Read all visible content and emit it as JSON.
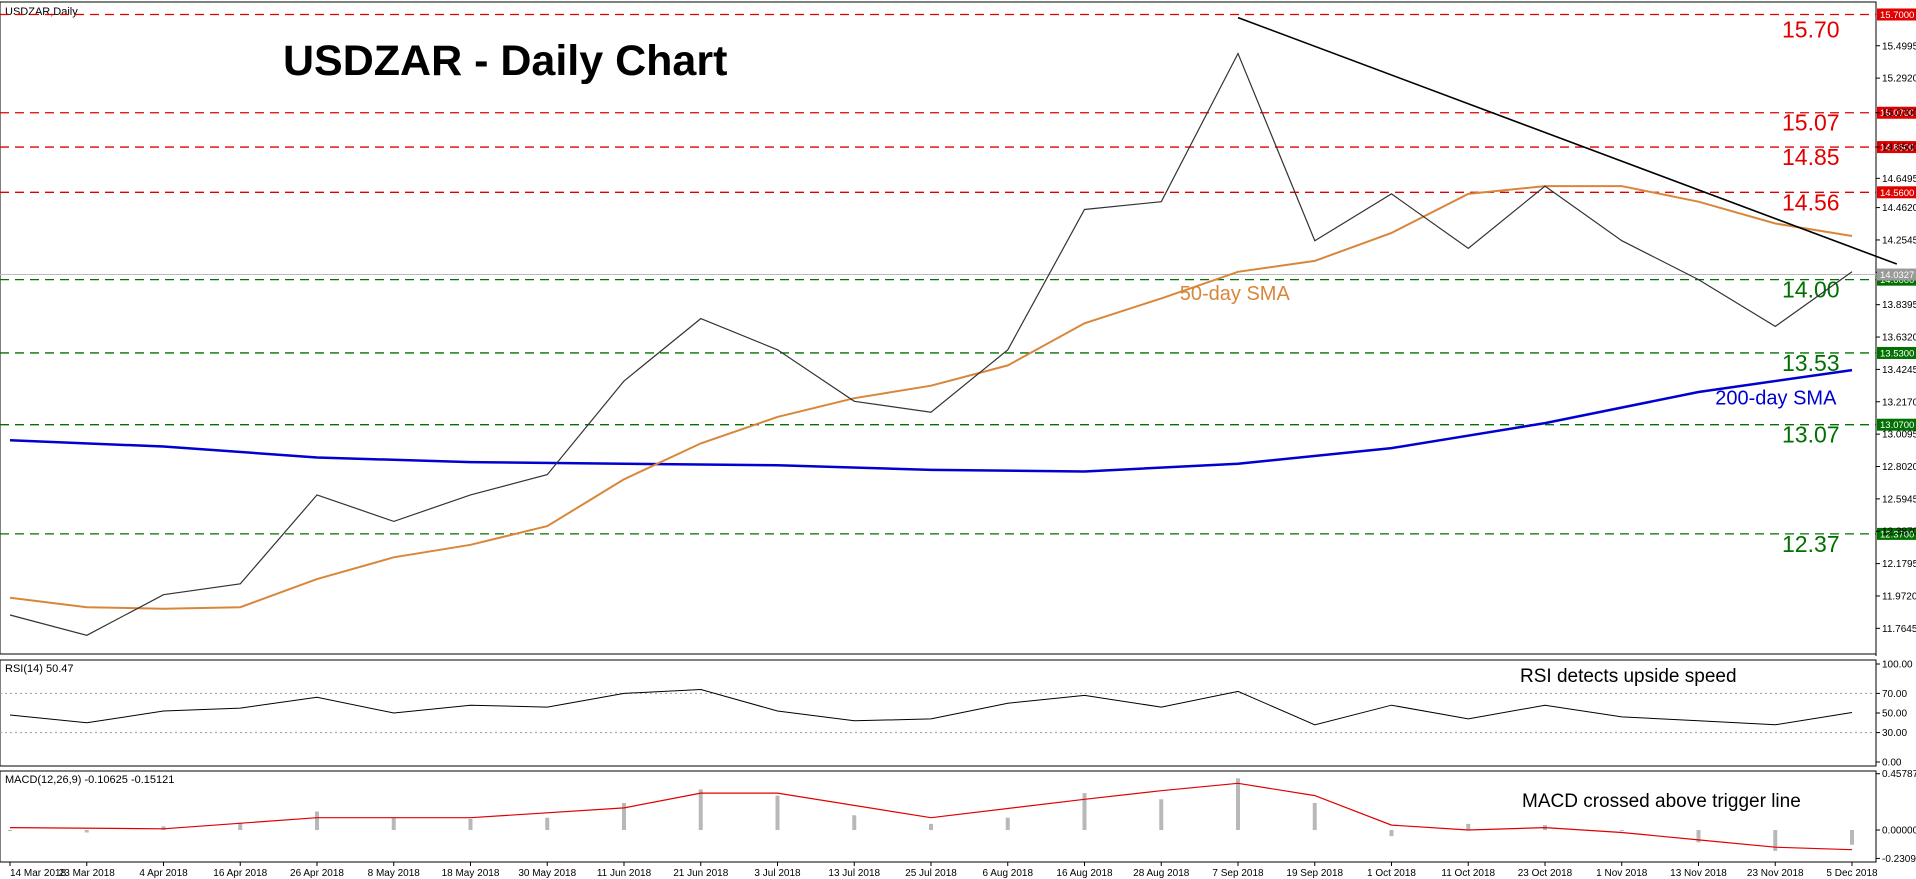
{
  "chart_data": {
    "type": "candlestick",
    "symbol_label": "USDZAR,Daily",
    "title": "USDZAR - Daily Chart",
    "price_axis": {
      "range": [
        11.6,
        15.78
      ],
      "ticks": [
        "15.4995",
        "15.2920",
        "15.0700",
        "14.8500",
        "14.6495",
        "14.4620",
        "14.2545",
        "14.0470",
        "13.8395",
        "13.6320",
        "13.4245",
        "13.2170",
        "13.0095",
        "12.8020",
        "12.5945",
        "12.3870",
        "12.1795",
        "11.9720",
        "11.7645"
      ]
    },
    "date_labels": [
      "14 Mar 2018",
      "23 Mar 2018",
      "4 Apr 2018",
      "16 Apr 2018",
      "26 Apr 2018",
      "8 May 2018",
      "18 May 2018",
      "30 May 2018",
      "11 Jun 2018",
      "21 Jun 2018",
      "3 Jul 2018",
      "13 Jul 2018",
      "25 Jul 2018",
      "6 Aug 2018",
      "16 Aug 2018",
      "28 Aug 2018",
      "7 Sep 2018",
      "19 Sep 2018",
      "1 Oct 2018",
      "11 Oct 2018",
      "23 Oct 2018",
      "1 Nov 2018",
      "13 Nov 2018",
      "23 Nov 2018",
      "5 Dec 2018"
    ],
    "levels": [
      {
        "value": 15.7,
        "label": "15.70",
        "tag": "15.7000",
        "kind": "resistance"
      },
      {
        "value": 15.07,
        "label": "15.07",
        "tag": "15.0700",
        "kind": "resistance"
      },
      {
        "value": 14.85,
        "label": "14.85",
        "tag": "14.8500",
        "kind": "resistance"
      },
      {
        "value": 14.56,
        "label": "14.56",
        "tag": "14.5600",
        "kind": "resistance"
      },
      {
        "value": 14.0,
        "label": "14.00",
        "tag": "14.0000",
        "kind": "support"
      },
      {
        "value": 13.53,
        "label": "13.53",
        "tag": "13.5300",
        "kind": "support"
      },
      {
        "value": 13.07,
        "label": "13.07",
        "tag": "13.0700",
        "kind": "support"
      },
      {
        "value": 12.37,
        "label": "12.37",
        "tag": "12.3700",
        "kind": "support"
      }
    ],
    "current_price_tag": "14.0327",
    "sma50_label": "50-day SMA",
    "sma200_label": "200-day SMA",
    "trendline": {
      "from": [
        "7 Sep 2018",
        15.68
      ],
      "to": [
        "12 Dec 2018",
        14.1
      ]
    },
    "price_path": [
      [
        "14 Mar 2018",
        11.85
      ],
      [
        "23 Mar 2018",
        11.72
      ],
      [
        "4 Apr 2018",
        11.98
      ],
      [
        "16 Apr 2018",
        12.05
      ],
      [
        "26 Apr 2018",
        12.62
      ],
      [
        "8 May 2018",
        12.45
      ],
      [
        "18 May 2018",
        12.62
      ],
      [
        "30 May 2018",
        12.75
      ],
      [
        "11 Jun 2018",
        13.35
      ],
      [
        "21 Jun 2018",
        13.75
      ],
      [
        "3 Jul 2018",
        13.55
      ],
      [
        "13 Jul 2018",
        13.22
      ],
      [
        "25 Jul 2018",
        13.15
      ],
      [
        "6 Aug 2018",
        13.55
      ],
      [
        "16 Aug 2018",
        14.45
      ],
      [
        "28 Aug 2018",
        14.5
      ],
      [
        "7 Sep 2018",
        15.45
      ],
      [
        "19 Sep 2018",
        14.25
      ],
      [
        "1 Oct 2018",
        14.55
      ],
      [
        "11 Oct 2018",
        14.2
      ],
      [
        "23 Oct 2018",
        14.6
      ],
      [
        "1 Nov 2018",
        14.25
      ],
      [
        "13 Nov 2018",
        14.0
      ],
      [
        "23 Nov 2018",
        13.7
      ],
      [
        "5 Dec 2018",
        14.05
      ]
    ],
    "sma50_path": [
      [
        "14 Mar 2018",
        11.96
      ],
      [
        "23 Mar 2018",
        11.9
      ],
      [
        "4 Apr 2018",
        11.89
      ],
      [
        "16 Apr 2018",
        11.9
      ],
      [
        "26 Apr 2018",
        12.08
      ],
      [
        "8 May 2018",
        12.22
      ],
      [
        "18 May 2018",
        12.3
      ],
      [
        "30 May 2018",
        12.42
      ],
      [
        "11 Jun 2018",
        12.72
      ],
      [
        "21 Jun 2018",
        12.95
      ],
      [
        "3 Jul 2018",
        13.12
      ],
      [
        "13 Jul 2018",
        13.24
      ],
      [
        "25 Jul 2018",
        13.32
      ],
      [
        "6 Aug 2018",
        13.45
      ],
      [
        "16 Aug 2018",
        13.72
      ],
      [
        "28 Aug 2018",
        13.88
      ],
      [
        "7 Sep 2018",
        14.05
      ],
      [
        "19 Sep 2018",
        14.12
      ],
      [
        "1 Oct 2018",
        14.3
      ],
      [
        "11 Oct 2018",
        14.55
      ],
      [
        "23 Oct 2018",
        14.6
      ],
      [
        "1 Nov 2018",
        14.6
      ],
      [
        "13 Nov 2018",
        14.5
      ],
      [
        "23 Nov 2018",
        14.36
      ],
      [
        "5 Dec 2018",
        14.28
      ]
    ],
    "sma200_path": [
      [
        "14 Mar 2018",
        12.97
      ],
      [
        "4 Apr 2018",
        12.93
      ],
      [
        "26 Apr 2018",
        12.86
      ],
      [
        "18 May 2018",
        12.83
      ],
      [
        "11 Jun 2018",
        12.82
      ],
      [
        "3 Jul 2018",
        12.81
      ],
      [
        "25 Jul 2018",
        12.78
      ],
      [
        "16 Aug 2018",
        12.77
      ],
      [
        "7 Sep 2018",
        12.82
      ],
      [
        "1 Oct 2018",
        12.92
      ],
      [
        "23 Oct 2018",
        13.08
      ],
      [
        "13 Nov 2018",
        13.28
      ],
      [
        "5 Dec 2018",
        13.42
      ]
    ],
    "rsi": {
      "label": "RSI(14) 50.47",
      "range": [
        0,
        100
      ],
      "ticks": [
        "100.00",
        "70.00",
        "50.00",
        "30.00",
        "0.00"
      ],
      "annotation": "RSI detects upside speed",
      "path": [
        [
          "14 Mar 2018",
          48
        ],
        [
          "23 Mar 2018",
          40
        ],
        [
          "4 Apr 2018",
          52
        ],
        [
          "16 Apr 2018",
          55
        ],
        [
          "26 Apr 2018",
          66
        ],
        [
          "8 May 2018",
          50
        ],
        [
          "18 May 2018",
          58
        ],
        [
          "30 May 2018",
          56
        ],
        [
          "11 Jun 2018",
          70
        ],
        [
          "21 Jun 2018",
          74
        ],
        [
          "3 Jul 2018",
          52
        ],
        [
          "13 Jul 2018",
          42
        ],
        [
          "25 Jul 2018",
          44
        ],
        [
          "6 Aug 2018",
          60
        ],
        [
          "16 Aug 2018",
          68
        ],
        [
          "28 Aug 2018",
          56
        ],
        [
          "7 Sep 2018",
          72
        ],
        [
          "19 Sep 2018",
          38
        ],
        [
          "1 Oct 2018",
          58
        ],
        [
          "11 Oct 2018",
          44
        ],
        [
          "23 Oct 2018",
          58
        ],
        [
          "1 Nov 2018",
          46
        ],
        [
          "13 Nov 2018",
          42
        ],
        [
          "23 Nov 2018",
          38
        ],
        [
          "5 Dec 2018",
          50.47
        ]
      ]
    },
    "macd": {
      "label": "MACD(12,26,9) -0.10625 -0.15121",
      "range": [
        -0.26,
        0.48
      ],
      "ticks": [
        "0.45787",
        "0.00000",
        "-0.23093"
      ],
      "annotation": "MACD crossed above trigger line",
      "histogram_path": [
        [
          "14 Mar 2018",
          0.0
        ],
        [
          "23 Mar 2018",
          -0.02
        ],
        [
          "4 Apr 2018",
          0.03
        ],
        [
          "16 Apr 2018",
          0.06
        ],
        [
          "26 Apr 2018",
          0.15
        ],
        [
          "8 May 2018",
          0.1
        ],
        [
          "18 May 2018",
          0.09
        ],
        [
          "30 May 2018",
          0.1
        ],
        [
          "11 Jun 2018",
          0.22
        ],
        [
          "21 Jun 2018",
          0.33
        ],
        [
          "3 Jul 2018",
          0.28
        ],
        [
          "13 Jul 2018",
          0.12
        ],
        [
          "25 Jul 2018",
          0.05
        ],
        [
          "6 Aug 2018",
          0.1
        ],
        [
          "16 Aug 2018",
          0.3
        ],
        [
          "28 Aug 2018",
          0.25
        ],
        [
          "7 Sep 2018",
          0.42
        ],
        [
          "19 Sep 2018",
          0.22
        ],
        [
          "1 Oct 2018",
          -0.05
        ],
        [
          "11 Oct 2018",
          0.05
        ],
        [
          "23 Oct 2018",
          0.04
        ],
        [
          "1 Nov 2018",
          0.0
        ],
        [
          "13 Nov 2018",
          -0.1
        ],
        [
          "23 Nov 2018",
          -0.17
        ],
        [
          "5 Dec 2018",
          -0.12
        ]
      ],
      "signal_path": [
        [
          "14 Mar 2018",
          0.02
        ],
        [
          "4 Apr 2018",
          0.01
        ],
        [
          "26 Apr 2018",
          0.1
        ],
        [
          "18 May 2018",
          0.1
        ],
        [
          "11 Jun 2018",
          0.18
        ],
        [
          "21 Jun 2018",
          0.3
        ],
        [
          "3 Jul 2018",
          0.3
        ],
        [
          "25 Jul 2018",
          0.1
        ],
        [
          "16 Aug 2018",
          0.25
        ],
        [
          "28 Aug 2018",
          0.32
        ],
        [
          "7 Sep 2018",
          0.38
        ],
        [
          "19 Sep 2018",
          0.28
        ],
        [
          "1 Oct 2018",
          0.04
        ],
        [
          "11 Oct 2018",
          0.0
        ],
        [
          "23 Oct 2018",
          0.02
        ],
        [
          "1 Nov 2018",
          -0.02
        ],
        [
          "13 Nov 2018",
          -0.08
        ],
        [
          "23 Nov 2018",
          -0.14
        ],
        [
          "5 Dec 2018",
          -0.16
        ]
      ]
    }
  }
}
